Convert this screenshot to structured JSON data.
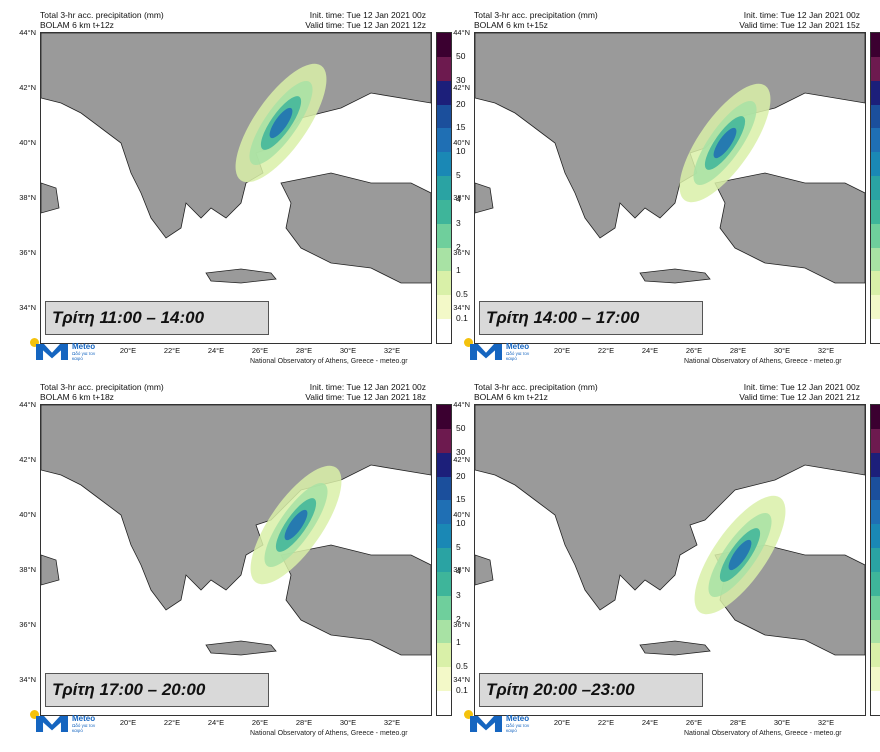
{
  "header": {
    "title": "Total 3-hr acc. precipitation (mm)",
    "init": "Init. time: Tue 12 Jan 2021 00z",
    "credit": "National Observatory of Athens, Greece - meteo.gr",
    "logo_name": "Meteo",
    "logo_tag": "Ωδό για τον καιρό"
  },
  "latitudes": [
    "44°N",
    "42°N",
    "40°N",
    "38°N",
    "36°N",
    "34°N"
  ],
  "longitudes": [
    "20°E",
    "22°E",
    "24°E",
    "26°E",
    "28°E",
    "30°E",
    "32°E"
  ],
  "legend": {
    "labels": [
      "50",
      "30",
      "20",
      "15",
      "10",
      "5",
      "4",
      "3",
      "2",
      "1",
      "0.5",
      "0.1"
    ],
    "colors": [
      "#3b0030",
      "#6d1a4f",
      "#1c1f7a",
      "#1b4f9c",
      "#1f6fb4",
      "#1a88b5",
      "#2aa3a3",
      "#3eb59a",
      "#6fcf9c",
      "#a8e2a4",
      "#d9f0a8",
      "#f3f9c8",
      "#ffffff"
    ]
  },
  "panels": [
    {
      "model": "BOLAM 6 km t+12z",
      "valid": "Valid time: Tue 12 Jan 2021 12z",
      "label": "Τρίτη 11:00 – 14:00"
    },
    {
      "model": "BOLAM 6 km t+15z",
      "valid": "Valid time: Tue 12 Jan 2021 15z",
      "label": "Τρίτη 14:00 – 17:00"
    },
    {
      "model": "BOLAM 6 km t+18z",
      "valid": "Valid time: Tue 12 Jan 2021 18z",
      "label": "Τρίτη 17:00 – 20:00"
    },
    {
      "model": "BOLAM 6 km t+21z",
      "valid": "Valid time: Tue 12 Jan 2021 21z",
      "label": "Τρίτη 20:00 –23:00"
    }
  ]
}
